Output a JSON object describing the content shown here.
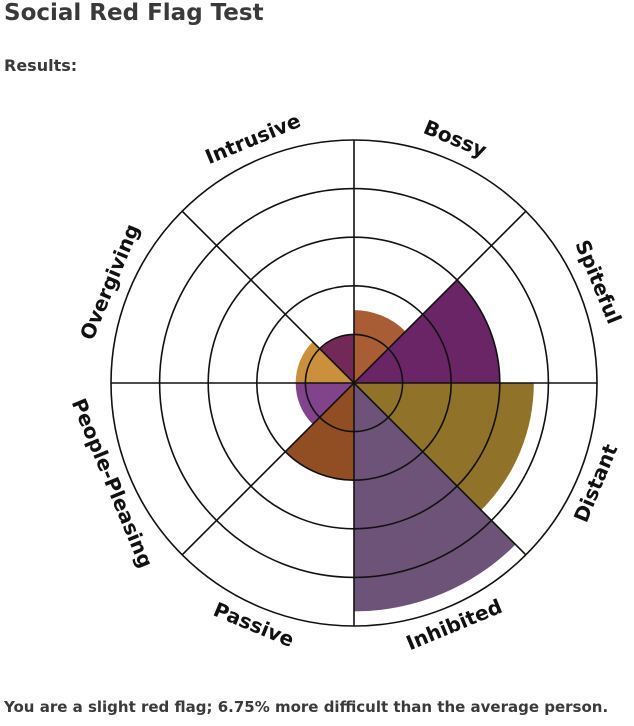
{
  "chart_data": {
    "type": "polar_area",
    "title": "Social Red Flag Test",
    "subtitle": "Results:",
    "categories": [
      "Bossy",
      "Spiteful",
      "Distant",
      "Inhibited",
      "Passive",
      "People-Pleasing",
      "Overgiving",
      "Intrusive"
    ],
    "values": [
      1.5,
      3,
      3.7,
      4.7,
      2,
      1.2,
      1.2,
      1
    ],
    "colors": [
      "#a4542a",
      "#62195e",
      "#8a6a1c",
      "#654a70",
      "#8a4516",
      "#7a3a86",
      "#c88a30",
      "#6a1e4e"
    ],
    "rlim": [
      0,
      5
    ],
    "rticks": [
      1,
      2,
      3,
      4,
      5
    ],
    "footer": "You are a slight red flag; 6.75% more difficult than the average person."
  }
}
